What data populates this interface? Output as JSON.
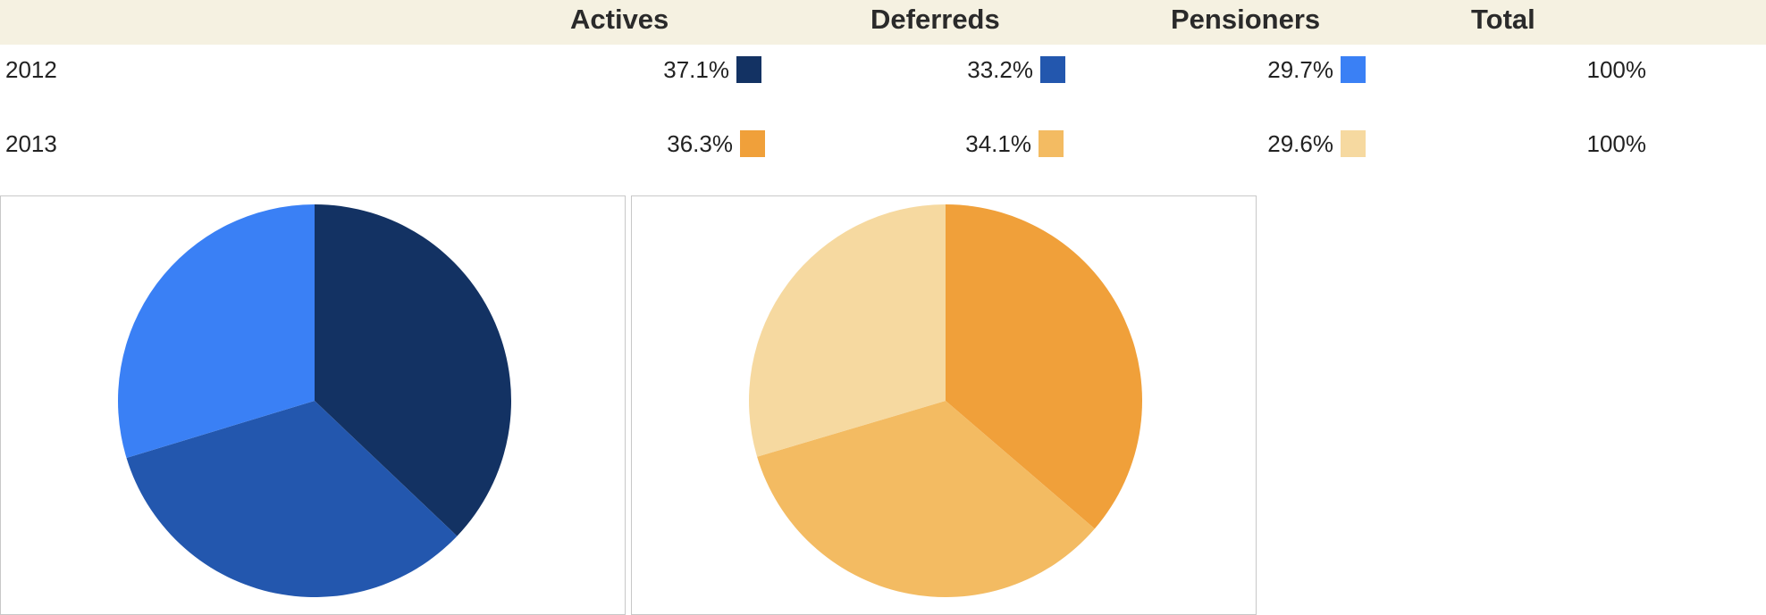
{
  "table": {
    "headers": {
      "actives": "Actives",
      "deferreds": "Deferreds",
      "pensioners": "Pensioners",
      "total": "Total"
    },
    "rows": [
      {
        "year": "2012",
        "actives": "37.1%",
        "deferreds": "33.2%",
        "pensioners": "29.7%",
        "total": "100%",
        "colors": {
          "actives": "#133263",
          "deferreds": "#2357ae",
          "pensioners": "#3a80f5"
        }
      },
      {
        "year": "2013",
        "actives": "36.3%",
        "deferreds": "34.1%",
        "pensioners": "29.6%",
        "total": "100%",
        "colors": {
          "actives": "#f0a03a",
          "deferreds": "#f3bb62",
          "pensioners": "#f6d9a0"
        }
      }
    ]
  },
  "chart_data": [
    {
      "type": "pie",
      "title": "",
      "labels": [
        "Actives",
        "Deferreds",
        "Pensioners"
      ],
      "values": [
        37.1,
        33.2,
        29.7
      ],
      "colors": [
        "#133263",
        "#2357ae",
        "#3a80f5"
      ]
    },
    {
      "type": "pie",
      "title": "",
      "labels": [
        "Actives",
        "Deferreds",
        "Pensioners"
      ],
      "values": [
        36.3,
        34.1,
        29.6
      ],
      "colors": [
        "#f0a03a",
        "#f3bb62",
        "#f6d9a0"
      ]
    }
  ]
}
